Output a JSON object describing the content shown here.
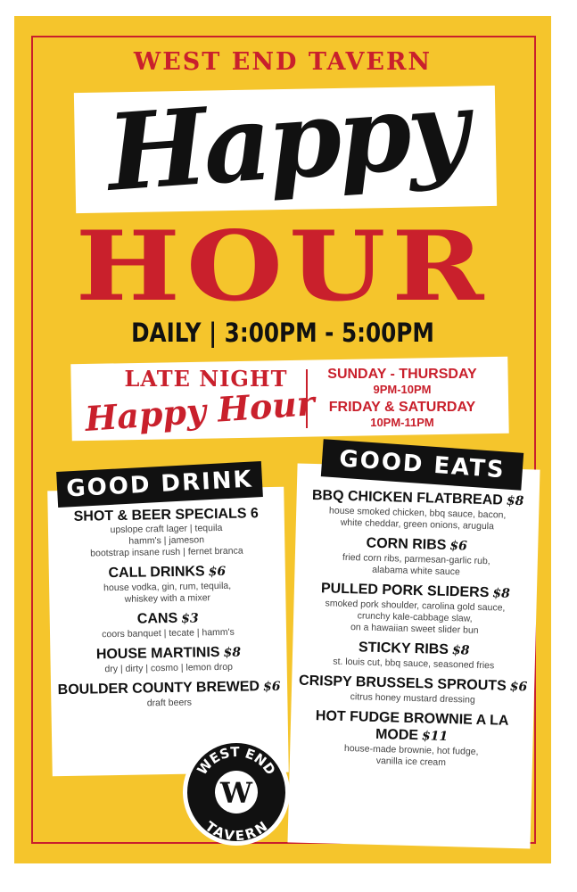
{
  "brand": "WEST END TAVERN",
  "title_script": "Happy",
  "title_block": "HOUR",
  "daily": "DAILY | 3:00PM - 5:00PM",
  "late_night": {
    "line1": "LATE NIGHT",
    "line2": "Happy Hour",
    "schedule": [
      {
        "days": "SUNDAY - THURSDAY",
        "hours": "9PM-10PM"
      },
      {
        "days": "FRIDAY & SATURDAY",
        "hours": "10PM-11PM"
      }
    ]
  },
  "drinks": {
    "heading": "GOOD DRINK",
    "items": [
      {
        "name": "SHOT & BEER SPECIALS 6",
        "price": "",
        "desc": [
          "upslope craft lager | tequila",
          "hamm's | jameson",
          "bootstrap insane rush | fernet branca"
        ]
      },
      {
        "name": "CALL DRINKS",
        "price": "$6",
        "desc": [
          "house vodka, gin, rum, tequila,",
          "whiskey with a mixer"
        ]
      },
      {
        "name": "CANS",
        "price": "$3",
        "desc": [
          "coors banquet | tecate | hamm's"
        ]
      },
      {
        "name": "HOUSE MARTINIS",
        "price": "$8",
        "desc": [
          "dry | dirty | cosmo | lemon drop"
        ]
      },
      {
        "name": "BOULDER COUNTY BREWED",
        "price": "$6",
        "desc": [
          "draft beers"
        ]
      }
    ]
  },
  "eats": {
    "heading": "GOOD EATS",
    "items": [
      {
        "name": "BBQ CHICKEN FLATBREAD",
        "price": "$8",
        "desc": [
          "house smoked chicken, bbq sauce, bacon,",
          "white cheddar, green onions, arugula"
        ]
      },
      {
        "name": "CORN RIBS",
        "price": "$6",
        "desc": [
          "fried corn ribs, parmesan-garlic rub,",
          "alabama white sauce"
        ]
      },
      {
        "name": "PULLED PORK SLIDERS",
        "price": "$8",
        "desc": [
          "smoked pork shoulder, carolina gold sauce,",
          "crunchy kale-cabbage slaw,",
          "on a hawaiian sweet slider bun"
        ]
      },
      {
        "name": "STICKY RIBS",
        "price": "$8",
        "desc": [
          "st. louis cut, bbq sauce, seasoned fries"
        ]
      },
      {
        "name": "CRISPY BRUSSELS SPROUTS",
        "price": "$6",
        "desc": [
          "citrus honey mustard dressing"
        ]
      },
      {
        "name": "HOT FUDGE BROWNIE A LA MODE",
        "price": "$11",
        "desc": [
          "house-made brownie, hot fudge,",
          "vanilla ice cream"
        ]
      }
    ]
  },
  "logo": {
    "top": "WEST END",
    "letter": "W",
    "bottom": "TAVERN"
  },
  "colors": {
    "background": "#F5C52C",
    "red": "#C9202C",
    "black": "#111111",
    "white": "#FFFFFF"
  }
}
